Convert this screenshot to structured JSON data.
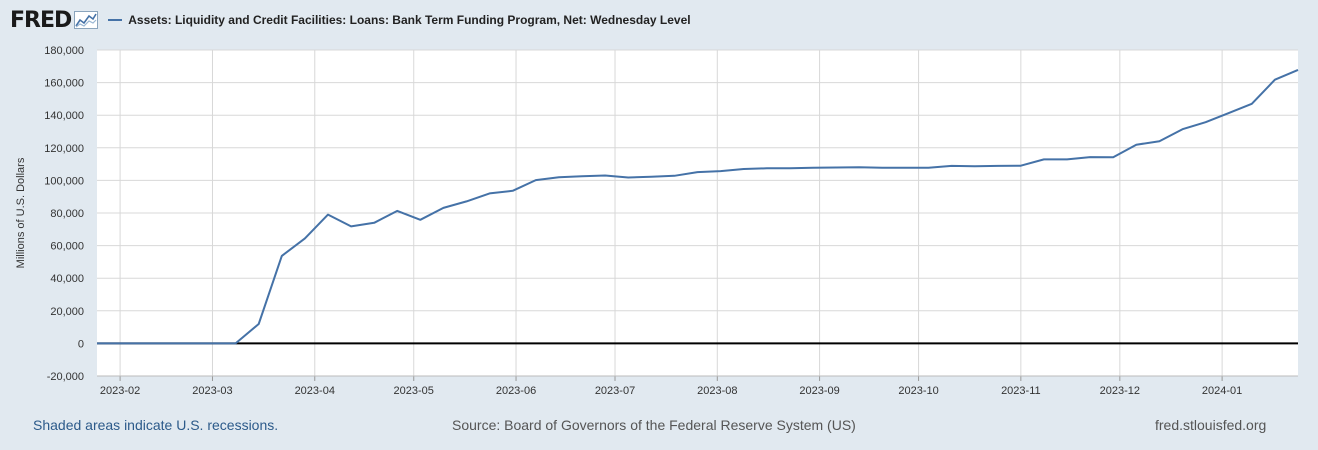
{
  "header": {
    "logo": "FRED",
    "series_title": "Assets: Liquidity and Credit Facilities: Loans: Bank Term Funding Program, Net: Wednesday Level"
  },
  "footer": {
    "recessions_note": "Shaded areas indicate U.S. recessions.",
    "source": "Source: Board of Governors of the Federal Reserve System (US)",
    "site": "fred.stlouisfed.org"
  },
  "colors": {
    "series": "#4572a7",
    "background": "#e1e9f0",
    "plot": "#ffffff",
    "zero_line": "#000000"
  },
  "chart_data": {
    "type": "line",
    "ylabel": "Millions of U.S. Dollars",
    "xlabel": "",
    "ylim": [
      -20000,
      180000
    ],
    "yticks": [
      -20000,
      0,
      20000,
      40000,
      60000,
      80000,
      100000,
      120000,
      140000,
      160000,
      180000
    ],
    "ytick_labels": [
      "-20,000",
      "0",
      "20,000",
      "40,000",
      "60,000",
      "80,000",
      "100,000",
      "120,000",
      "140,000",
      "160,000",
      "180,000"
    ],
    "xlim": [
      "2023-01-25",
      "2024-01-24"
    ],
    "xticks": [
      "2023-02-01",
      "2023-03-01",
      "2023-04-01",
      "2023-05-01",
      "2023-06-01",
      "2023-07-01",
      "2023-08-01",
      "2023-09-01",
      "2023-10-01",
      "2023-11-01",
      "2023-12-01",
      "2024-01-01"
    ],
    "xtick_labels": [
      "2023-02",
      "2023-03",
      "2023-04",
      "2023-05",
      "2023-06",
      "2023-07",
      "2023-08",
      "2023-09",
      "2023-10",
      "2023-11",
      "2023-12",
      "2024-01"
    ],
    "grid": true,
    "series": [
      {
        "x": [
          "2023-01-25",
          "2023-02-01",
          "2023-02-08",
          "2023-02-15",
          "2023-02-22",
          "2023-03-01",
          "2023-03-08",
          "2023-03-15",
          "2023-03-22",
          "2023-03-29",
          "2023-04-05",
          "2023-04-12",
          "2023-04-19",
          "2023-04-26",
          "2023-05-03",
          "2023-05-10",
          "2023-05-17",
          "2023-05-24",
          "2023-05-31",
          "2023-06-07",
          "2023-06-14",
          "2023-06-21",
          "2023-06-28",
          "2023-07-05",
          "2023-07-12",
          "2023-07-19",
          "2023-07-26",
          "2023-08-02",
          "2023-08-09",
          "2023-08-16",
          "2023-08-23",
          "2023-08-30",
          "2023-09-06",
          "2023-09-13",
          "2023-09-20",
          "2023-09-27",
          "2023-10-04",
          "2023-10-11",
          "2023-10-18",
          "2023-10-25",
          "2023-11-01",
          "2023-11-08",
          "2023-11-15",
          "2023-11-22",
          "2023-11-29",
          "2023-12-06",
          "2023-12-13",
          "2023-12-20",
          "2023-12-27",
          "2024-01-03",
          "2024-01-10",
          "2024-01-17",
          "2024-01-24"
        ],
        "y": [
          0,
          0,
          0,
          0,
          0,
          0,
          0,
          11900,
          53700,
          64400,
          79000,
          71800,
          74000,
          81300,
          75800,
          83100,
          87100,
          92000,
          93600,
          100200,
          101900,
          102600,
          103000,
          101800,
          102200,
          102800,
          105100,
          105700,
          107000,
          107400,
          107500,
          107700,
          107900,
          108100,
          107700,
          107700,
          107800,
          108900,
          108700,
          108900,
          109000,
          112900,
          112900,
          114300,
          114200,
          121900,
          124000,
          131400,
          135700,
          141300,
          147000,
          161800,
          167800
        ]
      }
    ]
  }
}
